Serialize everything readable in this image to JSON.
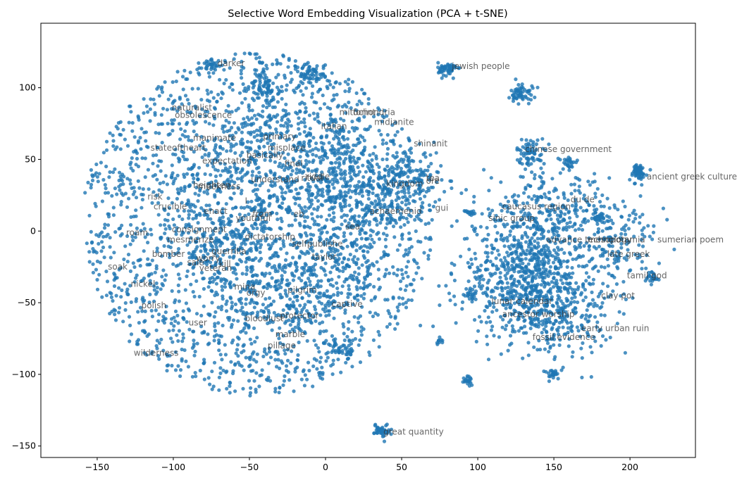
{
  "chart_data": {
    "type": "scatter",
    "title": "Selective Word Embedding Visualization (PCA + t-SNE)",
    "xlabel": "",
    "ylabel": "",
    "xlim": [
      -187,
      243
    ],
    "ylim": [
      -158,
      145
    ],
    "xticks": [
      -150,
      -100,
      -50,
      0,
      50,
      100,
      150,
      200
    ],
    "yticks": [
      -150,
      -100,
      -50,
      0,
      50,
      100
    ],
    "xtick_labels": [
      "−150",
      "−100",
      "−50",
      "0",
      "50",
      "100",
      "150",
      "200"
    ],
    "ytick_labels": [
      "−150",
      "−100",
      "−50",
      "0",
      "50",
      "100"
    ],
    "grid": false,
    "point_color": "#1f77b4",
    "label_color": "#333333",
    "clusters": [
      {
        "cx": -45,
        "cy": 5,
        "rx": 115,
        "ry": 120,
        "n": 2200
      },
      {
        "cx": -25,
        "cy": 10,
        "rx": 70,
        "ry": 75,
        "n": 900
      },
      {
        "cx": 55,
        "cy": 35,
        "rx": 18,
        "ry": 18,
        "n": 160
      },
      {
        "cx": 10,
        "cy": 35,
        "rx": 22,
        "ry": 30,
        "n": 150
      },
      {
        "cx": 80,
        "cy": 113,
        "rx": 5,
        "ry": 4,
        "n": 60
      },
      {
        "cx": 129,
        "cy": 96,
        "rx": 6,
        "ry": 6,
        "n": 60
      },
      {
        "cx": 135,
        "cy": 55,
        "rx": 8,
        "ry": 8,
        "n": 70
      },
      {
        "cx": 205,
        "cy": 41,
        "rx": 5,
        "ry": 5,
        "n": 60
      },
      {
        "cx": 135,
        "cy": -30,
        "rx": 40,
        "ry": 35,
        "n": 800
      },
      {
        "cx": 145,
        "cy": 15,
        "rx": 35,
        "ry": 20,
        "n": 200
      },
      {
        "cx": 190,
        "cy": -5,
        "rx": 25,
        "ry": 25,
        "n": 150
      },
      {
        "cx": 150,
        "cy": -60,
        "rx": 30,
        "ry": 20,
        "n": 200
      },
      {
        "cx": 37,
        "cy": -139,
        "rx": 4,
        "ry": 4,
        "n": 45
      },
      {
        "cx": 94,
        "cy": -104,
        "rx": 3,
        "ry": 3,
        "n": 20
      },
      {
        "cx": 150,
        "cy": -100,
        "rx": 4,
        "ry": 3,
        "n": 25
      },
      {
        "cx": 75,
        "cy": -77,
        "rx": 2,
        "ry": 2,
        "n": 10
      },
      {
        "cx": 95,
        "cy": -45,
        "rx": 3,
        "ry": 4,
        "n": 20
      },
      {
        "cx": 215,
        "cy": -33,
        "rx": 4,
        "ry": 4,
        "n": 25
      },
      {
        "cx": 95,
        "cy": 13,
        "rx": 3,
        "ry": 2,
        "n": 15
      },
      {
        "cx": 10,
        "cy": -83,
        "rx": 6,
        "ry": 6,
        "n": 40
      },
      {
        "cx": -40,
        "cy": 100,
        "rx": 8,
        "ry": 8,
        "n": 60
      },
      {
        "cx": -10,
        "cy": 110,
        "rx": 8,
        "ry": 6,
        "n": 50
      },
      {
        "cx": -75,
        "cy": 116,
        "rx": 5,
        "ry": 3,
        "n": 25
      },
      {
        "cx": 160,
        "cy": 48,
        "rx": 5,
        "ry": 4,
        "n": 25
      },
      {
        "cx": 180,
        "cy": 8,
        "rx": 4,
        "ry": 3,
        "n": 20
      }
    ],
    "labels": [
      {
        "text": "darker",
        "x": -71,
        "y": 117
      },
      {
        "text": "jewish people",
        "x": 83,
        "y": 115
      },
      {
        "text": "naturalist",
        "x": -101,
        "y": 86
      },
      {
        "text": "obsolescence",
        "x": -99,
        "y": 81
      },
      {
        "text": "mitochondria",
        "x": 9,
        "y": 83
      },
      {
        "text": "forint",
        "x": 18,
        "y": 83
      },
      {
        "text": "italian",
        "x": -3,
        "y": 73
      },
      {
        "text": "midianite",
        "x": 32,
        "y": 76
      },
      {
        "text": "manimate",
        "x": -87,
        "y": 65
      },
      {
        "text": "primary",
        "x": -41,
        "y": 66
      },
      {
        "text": "shinanit",
        "x": 58,
        "y": 61
      },
      {
        "text": "stateoftheart",
        "x": -115,
        "y": 58
      },
      {
        "text": "misplace",
        "x": -38,
        "y": 58
      },
      {
        "text": "chinese government",
        "x": 131,
        "y": 57
      },
      {
        "text": "basically",
        "x": -52,
        "y": 53
      },
      {
        "text": "expectation",
        "x": -81,
        "y": 49
      },
      {
        "text": "final",
        "x": -27,
        "y": 47
      },
      {
        "text": "ancient greek culture",
        "x": 211,
        "y": 38
      },
      {
        "text": "understand",
        "x": -49,
        "y": 36
      },
      {
        "text": "ritual",
        "x": -16,
        "y": 37
      },
      {
        "text": "riddle",
        "x": -13,
        "y": 38
      },
      {
        "text": "kingdom",
        "x": 40,
        "y": 33
      },
      {
        "text": "ore",
        "x": 66,
        "y": 35
      },
      {
        "text": "tea",
        "x": 66,
        "y": 37
      },
      {
        "text": "heighten",
        "x": -87,
        "y": 32
      },
      {
        "text": "meekness",
        "x": -84,
        "y": 31
      },
      {
        "text": "risk",
        "x": -117,
        "y": 24
      },
      {
        "text": "I",
        "x": -53,
        "y": 21
      },
      {
        "text": "du de",
        "x": 161,
        "y": 22
      },
      {
        "text": "caucasus region",
        "x": 116,
        "y": 17
      },
      {
        "text": "crucible",
        "x": -113,
        "y": 17
      },
      {
        "text": "gui",
        "x": 72,
        "y": 16
      },
      {
        "text": "achaemenid",
        "x": 29,
        "y": 14
      },
      {
        "text": "enact",
        "x": -80,
        "y": 14
      },
      {
        "text": "from",
        "x": -48,
        "y": 12
      },
      {
        "text": "eb",
        "x": -21,
        "y": 12
      },
      {
        "text": "youthful",
        "x": -59,
        "y": 9
      },
      {
        "text": "sinic group",
        "x": 107,
        "y": 9
      },
      {
        "text": "sea",
        "x": 13,
        "y": 3
      },
      {
        "text": "roam",
        "x": -131,
        "y": -1
      },
      {
        "text": "consignment",
        "x": -101,
        "y": 1
      },
      {
        "text": "dictatorship",
        "x": -53,
        "y": -4
      },
      {
        "text": "advance technology",
        "x": 145,
        "y": -6
      },
      {
        "text": "mesopotamia",
        "x": 172,
        "y": -6
      },
      {
        "text": "sumerian poem",
        "x": 218,
        "y": -6
      },
      {
        "text": "mesmerize",
        "x": -104,
        "y": -6
      },
      {
        "text": "selfpublishe",
        "x": -22,
        "y": -9
      },
      {
        "text": "guerrilla",
        "x": -75,
        "y": -14
      },
      {
        "text": "late greek",
        "x": 185,
        "y": -16
      },
      {
        "text": "bomber",
        "x": -114,
        "y": -16
      },
      {
        "text": "taylor",
        "x": -9,
        "y": -18
      },
      {
        "text": "worry",
        "x": -85,
        "y": -19
      },
      {
        "text": "sale",
        "x": -91,
        "y": -22
      },
      {
        "text": "kill",
        "x": -70,
        "y": -23
      },
      {
        "text": "veteran",
        "x": -83,
        "y": -26
      },
      {
        "text": "soak",
        "x": -143,
        "y": -25
      },
      {
        "text": "tamil god",
        "x": 198,
        "y": -31
      },
      {
        "text": "nickel",
        "x": -128,
        "y": -37
      },
      {
        "text": "mina",
        "x": -60,
        "y": -39
      },
      {
        "text": "pilgrim",
        "x": -25,
        "y": -41
      },
      {
        "text": "orgy",
        "x": -52,
        "y": -43
      },
      {
        "text": "clay pot",
        "x": 181,
        "y": -45
      },
      {
        "text": "lunar calendar",
        "x": 109,
        "y": -49
      },
      {
        "text": "captive",
        "x": 4,
        "y": -51
      },
      {
        "text": "polish",
        "x": -121,
        "y": -52
      },
      {
        "text": "ancestor worship",
        "x": 116,
        "y": -58
      },
      {
        "text": "bloodlust",
        "x": -53,
        "y": -61
      },
      {
        "text": "protector",
        "x": -30,
        "y": -59
      },
      {
        "text": "user",
        "x": -90,
        "y": -64
      },
      {
        "text": "early urban ruin",
        "x": 168,
        "y": -68
      },
      {
        "text": "marble",
        "x": -33,
        "y": -72
      },
      {
        "text": "fossil evidence",
        "x": 136,
        "y": -74
      },
      {
        "text": "pillage",
        "x": -38,
        "y": -80
      },
      {
        "text": "wilderness",
        "x": -126,
        "y": -85
      },
      {
        "text": "great quantity",
        "x": 38,
        "y": -140
      }
    ]
  }
}
